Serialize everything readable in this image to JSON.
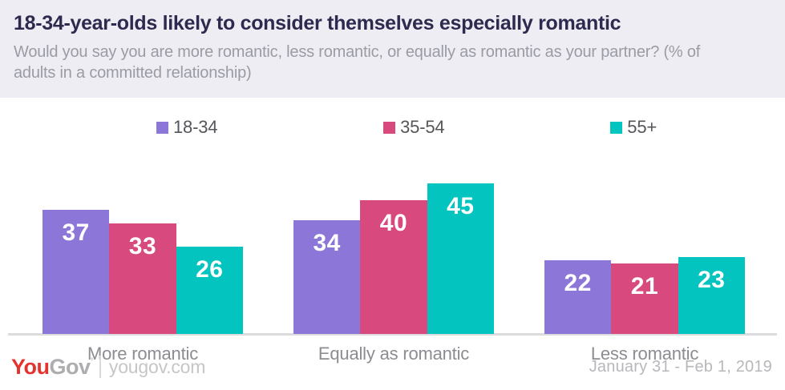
{
  "header": {
    "title": "18-34-year-olds likely to consider themselves especially romantic",
    "subtitle": "Would you say you are more romantic, less romantic, or equally as romantic as your partner? (% of adults in a committed relationship)"
  },
  "chart_data": {
    "type": "bar",
    "categories": [
      "More romantic",
      "Equally as romantic",
      "Less romantic"
    ],
    "series": [
      {
        "name": "18-34",
        "color": "#8C77D9",
        "values": [
          37,
          34,
          22
        ]
      },
      {
        "name": "35-54",
        "color": "#D8497E",
        "values": [
          33,
          40,
          21
        ]
      },
      {
        "name": "55+",
        "color": "#03C4BE",
        "values": [
          26,
          45,
          23
        ]
      }
    ],
    "ylim": [
      0,
      48
    ],
    "value_labels": "inside-top-white",
    "legend_position": "top",
    "grid": "off",
    "axis_line_color": "#DCDCDE"
  },
  "footer": {
    "logo_you": "You",
    "logo_gov": "Gov",
    "logo_tm": "’",
    "site": "yougov.com",
    "date": "January 31 - Feb 1, 2019"
  }
}
